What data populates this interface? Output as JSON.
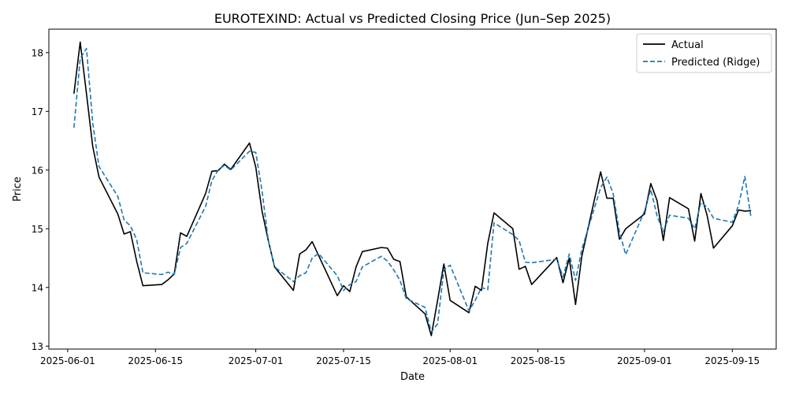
{
  "chart_data": {
    "type": "line",
    "title": "EUROTEXIND: Actual vs Predicted Closing Price (Jun–Sep 2025)",
    "xlabel": "Date",
    "ylabel": "Price",
    "xlim": [
      "2025-05-29",
      "2025-09-22"
    ],
    "ylim": [
      12.95,
      18.4
    ],
    "x_ticks": [
      "2025-06-01",
      "2025-06-15",
      "2025-07-01",
      "2025-07-15",
      "2025-08-01",
      "2025-08-15",
      "2025-09-01",
      "2025-09-15"
    ],
    "y_ticks": [
      13,
      14,
      15,
      16,
      17,
      18
    ],
    "grid": false,
    "legend_position": "upper right",
    "dates": [
      "2025-06-02",
      "2025-06-03",
      "2025-06-04",
      "2025-06-05",
      "2025-06-06",
      "2025-06-09",
      "2025-06-10",
      "2025-06-11",
      "2025-06-12",
      "2025-06-13",
      "2025-06-16",
      "2025-06-17",
      "2025-06-18",
      "2025-06-19",
      "2025-06-20",
      "2025-06-23",
      "2025-06-24",
      "2025-06-25",
      "2025-06-26",
      "2025-06-27",
      "2025-06-30",
      "2025-07-01",
      "2025-07-02",
      "2025-07-03",
      "2025-07-04",
      "2025-07-07",
      "2025-07-08",
      "2025-07-09",
      "2025-07-10",
      "2025-07-11",
      "2025-07-14",
      "2025-07-15",
      "2025-07-16",
      "2025-07-17",
      "2025-07-18",
      "2025-07-21",
      "2025-07-22",
      "2025-07-23",
      "2025-07-24",
      "2025-07-25",
      "2025-07-28",
      "2025-07-29",
      "2025-07-30",
      "2025-07-31",
      "2025-08-01",
      "2025-08-04",
      "2025-08-05",
      "2025-08-06",
      "2025-08-07",
      "2025-08-08",
      "2025-08-11",
      "2025-08-12",
      "2025-08-13",
      "2025-08-14",
      "2025-08-18",
      "2025-08-19",
      "2025-08-20",
      "2025-08-21",
      "2025-08-22",
      "2025-08-25",
      "2025-08-26",
      "2025-08-27",
      "2025-08-28",
      "2025-08-29",
      "2025-09-01",
      "2025-09-02",
      "2025-09-03",
      "2025-09-04",
      "2025-09-05",
      "2025-09-08",
      "2025-09-09",
      "2025-09-10",
      "2025-09-11",
      "2025-09-12",
      "2025-09-15",
      "2025-09-16",
      "2025-09-17",
      "2025-09-18"
    ],
    "series": [
      {
        "name": "Actual",
        "color": "#000000",
        "dash": "solid",
        "values": [
          17.3,
          18.18,
          17.3,
          16.4,
          15.88,
          15.25,
          14.91,
          14.95,
          14.45,
          14.03,
          14.05,
          14.13,
          14.23,
          14.93,
          14.87,
          15.6,
          15.98,
          15.99,
          16.1,
          16.01,
          16.46,
          16.05,
          15.3,
          14.8,
          14.35,
          13.95,
          14.57,
          14.64,
          14.78,
          14.55,
          13.86,
          14.03,
          13.93,
          14.35,
          14.61,
          14.68,
          14.67,
          14.48,
          14.44,
          13.84,
          13.55,
          13.18,
          13.78,
          14.4,
          13.78,
          13.57,
          14.02,
          13.95,
          14.75,
          15.27,
          15.0,
          14.31,
          14.36,
          14.05,
          14.51,
          14.08,
          14.5,
          13.71,
          14.53,
          15.97,
          15.52,
          15.52,
          14.82,
          15.0,
          15.25,
          15.77,
          15.48,
          14.8,
          15.53,
          15.34,
          14.79,
          15.6,
          15.22,
          14.67,
          15.05,
          15.32,
          15.3,
          15.31
        ]
      },
      {
        "name": "Predicted (Ridge)",
        "color": "#1f77b4",
        "dash": "dashed",
        "values": [
          16.72,
          17.9,
          18.07,
          16.8,
          16.06,
          15.55,
          15.15,
          15.05,
          14.82,
          14.25,
          14.22,
          14.26,
          14.22,
          14.68,
          14.75,
          15.38,
          15.82,
          16.0,
          16.08,
          16.0,
          16.32,
          16.3,
          15.65,
          14.8,
          14.35,
          14.1,
          14.2,
          14.25,
          14.5,
          14.58,
          14.2,
          13.95,
          14.05,
          14.1,
          14.35,
          14.53,
          14.45,
          14.3,
          14.12,
          13.81,
          13.66,
          13.24,
          13.38,
          14.3,
          14.38,
          13.6,
          13.78,
          14.0,
          13.96,
          15.1,
          14.9,
          14.8,
          14.43,
          14.42,
          14.48,
          14.18,
          14.57,
          14.12,
          14.65,
          15.7,
          15.88,
          15.6,
          14.95,
          14.56,
          15.3,
          15.67,
          15.22,
          14.95,
          15.23,
          15.18,
          15.0,
          15.45,
          15.37,
          15.18,
          15.11,
          15.4,
          15.89,
          15.18
        ]
      }
    ]
  }
}
